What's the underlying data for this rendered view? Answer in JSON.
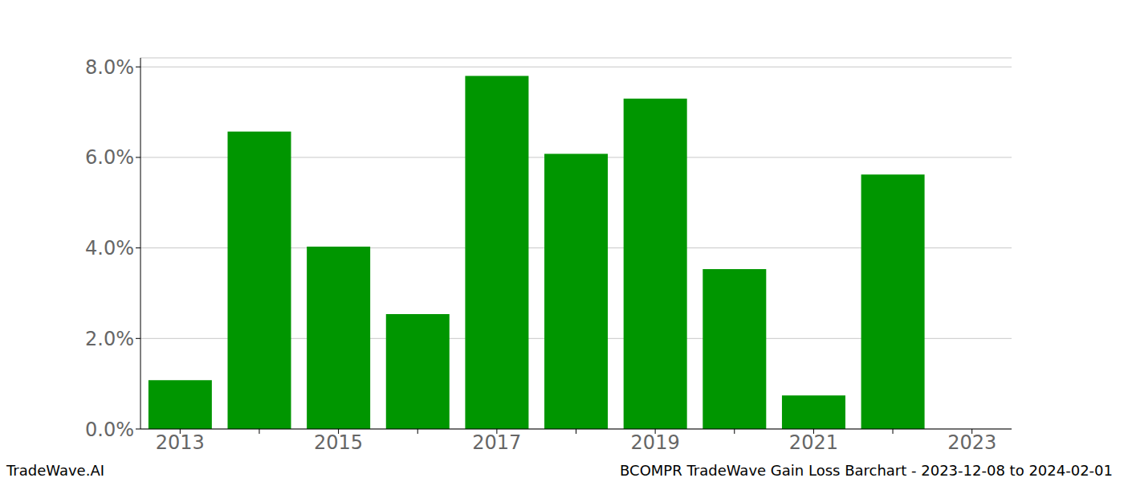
{
  "chart_data": {
    "type": "bar",
    "categories": [
      "2013",
      null,
      "2015",
      null,
      "2017",
      null,
      "2019",
      null,
      "2021",
      null,
      "2023"
    ],
    "values": [
      1.08,
      6.57,
      4.03,
      2.54,
      7.8,
      6.08,
      7.3,
      3.53,
      0.74,
      5.62,
      0
    ],
    "color": "#009600",
    "ylim": [
      0,
      8.2
    ],
    "yticks": [
      {
        "value": 0,
        "label": "0.0%"
      },
      {
        "value": 2,
        "label": "2.0%"
      },
      {
        "value": 4,
        "label": "4.0%"
      },
      {
        "value": 6,
        "label": "6.0%"
      },
      {
        "value": 8,
        "label": "8.0%"
      }
    ],
    "grid": true,
    "annotations": [
      "TradeWave.AI",
      "BCOMPR TradeWave Gain Loss Barchart - 2023-12-08 to 2024-02-01"
    ]
  }
}
